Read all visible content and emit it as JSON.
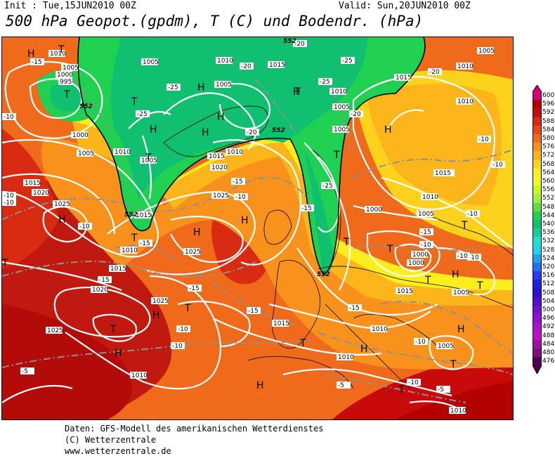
{
  "header": {
    "init": "Init : Tue,15JUN2010 00Z",
    "valid": "Valid: Sun,20JUN2010 00Z",
    "title": "500 hPa Geopot.(gpdm), T (C) und Bodendr. (hPa)"
  },
  "footer": {
    "line1": "Daten: GFS-Modell des amerikanischen Wetterdienstes",
    "line2": "(C) Wetterzentrale",
    "line3": "www.wetterzentrale.de"
  },
  "legend": {
    "labels": [
      "600",
      "596",
      "592",
      "588",
      "584",
      "580",
      "576",
      "572",
      "568",
      "564",
      "560",
      "556",
      "552",
      "548",
      "544",
      "540",
      "536",
      "532",
      "528",
      "524",
      "520",
      "516",
      "512",
      "508",
      "504",
      "500",
      "496",
      "492",
      "488",
      "484",
      "480",
      "476"
    ],
    "colors": [
      "#d6007a",
      "#b30000",
      "#c80a0a",
      "#d92a12",
      "#e84818",
      "#f06a1c",
      "#f8921c",
      "#fcb61c",
      "#fcd21c",
      "#fcee1c",
      "#f0fa1c",
      "#c8fa1c",
      "#a0f03c",
      "#58e03c",
      "#20d050",
      "#10c070",
      "#10d0a0",
      "#20e0d0",
      "#20d0f0",
      "#20a0f0",
      "#2070f0",
      "#2040f0",
      "#2020e0",
      "#3010d0",
      "#5010d0",
      "#7010d0",
      "#9010d0",
      "#b010d0",
      "#c010c0",
      "#a010a0",
      "#801080",
      "#500050"
    ]
  },
  "map": {
    "pressure_labels": [
      "1010",
      "1005",
      "1000",
      "995",
      "1005",
      "1010",
      "1015",
      "1020",
      "1025",
      "1010",
      "1005",
      "1000",
      "1005",
      "1010",
      "1015",
      "1020",
      "1025",
      "1015",
      "1010",
      "1005",
      "1015",
      "1025",
      "1020",
      "1025",
      "1025",
      "1010",
      "1015",
      "1005",
      "1010",
      "1005",
      "1000",
      "1005",
      "1010",
      "1015",
      "1000",
      "1000",
      "1005",
      "1010",
      "1010",
      "1010",
      "1005",
      "1015",
      "1010",
      "1015",
      "1015",
      "1005",
      "1010"
    ],
    "temp_labels": [
      "-15",
      "-10",
      "-15",
      "-10",
      "-5",
      "-10",
      "-15",
      "-25",
      "-20",
      "-25",
      "-25",
      "-20",
      "-20",
      "-25",
      "-25",
      "-20",
      "-15",
      "-15",
      "-10",
      "-15",
      "-10",
      "-10",
      "-5",
      "-10",
      "-10",
      "-15",
      "-10",
      "-15",
      "-20",
      "-10",
      "-5",
      "-5",
      "-10",
      "-10",
      "-10",
      "-15",
      "-10",
      "-10"
    ],
    "geo_labels": [
      "552",
      "552",
      "552",
      "552",
      "552"
    ],
    "pressure_centers": [
      "H",
      "T",
      "T",
      "T",
      "H",
      "T",
      "H",
      "H",
      "H",
      "T",
      "H",
      "T",
      "H",
      "T",
      "H",
      "T",
      "H",
      "T",
      "T",
      "H",
      "T",
      "H",
      "T",
      "H",
      "T",
      "H",
      "H",
      "T",
      "T",
      "T",
      "H",
      "H",
      "T",
      "T"
    ]
  }
}
